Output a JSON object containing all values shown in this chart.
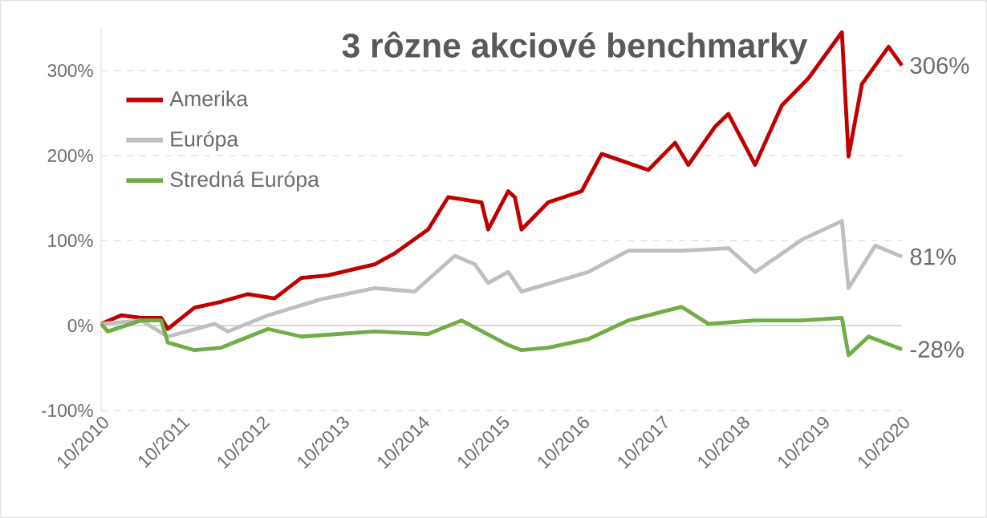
{
  "chart_data": {
    "type": "line",
    "title": "3 rôzne akciové benchmarky",
    "xlim": [
      "2010-10",
      "2020-10"
    ],
    "xticks": [
      {
        "value": "2010-10",
        "label": "10/2010"
      },
      {
        "value": "2011-10",
        "label": "10/2011"
      },
      {
        "value": "2012-10",
        "label": "10/2012"
      },
      {
        "value": "2013-10",
        "label": "10/2013"
      },
      {
        "value": "2014-10",
        "label": "10/2014"
      },
      {
        "value": "2015-10",
        "label": "10/2015"
      },
      {
        "value": "2016-10",
        "label": "10/2016"
      },
      {
        "value": "2017-10",
        "label": "10/2017"
      },
      {
        "value": "2018-10",
        "label": "10/2018"
      },
      {
        "value": "2019-10",
        "label": "10/2019"
      },
      {
        "value": "2020-10",
        "label": "10/2020"
      }
    ],
    "ylim": [
      -100,
      350
    ],
    "yticks": [
      {
        "value": -100,
        "label": "-100%"
      },
      {
        "value": 0,
        "label": "0%"
      },
      {
        "value": 100,
        "label": "100%"
      },
      {
        "value": 200,
        "label": "200%"
      },
      {
        "value": 300,
        "label": "300%"
      }
    ],
    "grid": "y",
    "legend": "top left",
    "marker": "none",
    "line_style": "solid",
    "ref_lines": [
      {
        "axis": "y",
        "value": 0,
        "color": "#d9d9d9"
      }
    ],
    "series": [
      {
        "name": "Amerika",
        "color": "#c00000",
        "x": [
          "2010-10",
          "2011-01",
          "2011-04",
          "2011-07",
          "2011-08",
          "2011-12",
          "2012-04",
          "2012-08",
          "2012-12",
          "2013-04",
          "2013-08",
          "2014-03",
          "2014-06",
          "2014-11",
          "2015-02",
          "2015-07",
          "2015-08",
          "2015-11",
          "2015-12",
          "2016-01",
          "2016-05",
          "2016-10",
          "2017-01",
          "2017-08",
          "2017-12",
          "2018-02",
          "2018-06",
          "2018-08",
          "2018-12",
          "2019-04",
          "2019-08",
          "2020-01",
          "2020-02",
          "2020-04",
          "2020-08",
          "2020-10"
        ],
        "values": [
          2,
          12,
          9,
          9,
          -4,
          21,
          28,
          37,
          32,
          56,
          59,
          72,
          85,
          113,
          151,
          145,
          113,
          158,
          151,
          113,
          145,
          158,
          202,
          183,
          215,
          189,
          234,
          249,
          189,
          259,
          291,
          345,
          199,
          284,
          328,
          306
        ],
        "value_labels": [
          null,
          null,
          null,
          null,
          null,
          null,
          null,
          null,
          null,
          null,
          null,
          null,
          null,
          null,
          null,
          null,
          null,
          null,
          null,
          null,
          null,
          null,
          null,
          null,
          null,
          null,
          null,
          null,
          null,
          null,
          null,
          null,
          null,
          null,
          null,
          "306%"
        ]
      },
      {
        "name": "Európa",
        "color": "#bfbfbf",
        "x": [
          "2010-10",
          "2011-04",
          "2011-08",
          "2012-03",
          "2012-05",
          "2012-11",
          "2013-07",
          "2014-03",
          "2014-09",
          "2015-03",
          "2015-06",
          "2015-08",
          "2015-11",
          "2016-01",
          "2016-11",
          "2017-05",
          "2018-01",
          "2018-08",
          "2018-12",
          "2019-07",
          "2020-01",
          "2020-02",
          "2020-06",
          "2020-10"
        ],
        "values": [
          2,
          6,
          -13,
          2,
          -7,
          12,
          31,
          44,
          40,
          82,
          72,
          50,
          63,
          40,
          63,
          88,
          88,
          91,
          63,
          101,
          123,
          44,
          94,
          81
        ],
        "value_labels": [
          null,
          null,
          null,
          null,
          null,
          null,
          null,
          null,
          null,
          null,
          null,
          null,
          null,
          null,
          null,
          null,
          null,
          null,
          null,
          null,
          null,
          null,
          null,
          "81%"
        ]
      },
      {
        "name": "Stredná Európa",
        "color": "#70ad47",
        "x": [
          "2010-10",
          "2010-11",
          "2011-04",
          "2011-07",
          "2011-08",
          "2011-12",
          "2012-04",
          "2012-11",
          "2013-04",
          "2014-03",
          "2014-11",
          "2015-04",
          "2015-11",
          "2016-01",
          "2016-05",
          "2016-11",
          "2017-05",
          "2018-01",
          "2018-05",
          "2018-12",
          "2019-07",
          "2020-01",
          "2020-02",
          "2020-05",
          "2020-10"
        ],
        "values": [
          2,
          -7,
          6,
          6,
          -20,
          -29,
          -26,
          -4,
          -13,
          -7,
          -10,
          6,
          -23,
          -29,
          -26,
          -16,
          6,
          22,
          2,
          6,
          6,
          9,
          -35,
          -13,
          -28
        ],
        "value_labels": [
          null,
          null,
          null,
          null,
          null,
          null,
          null,
          null,
          null,
          null,
          null,
          null,
          null,
          null,
          null,
          null,
          null,
          null,
          null,
          null,
          null,
          null,
          null,
          null,
          "-28%"
        ]
      }
    ]
  }
}
